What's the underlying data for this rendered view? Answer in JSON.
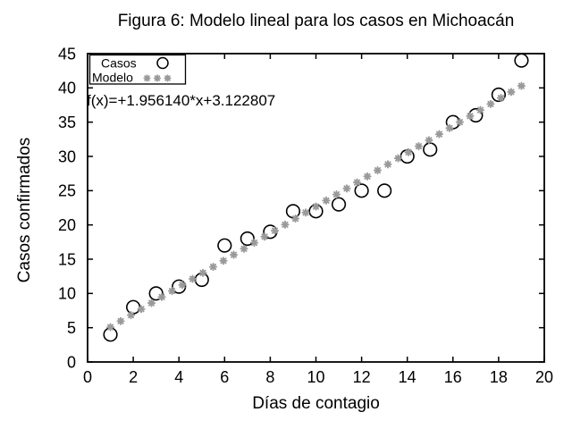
{
  "chart_data": {
    "type": "scatter",
    "title": "Figura 6: Modelo lineal para los casos en Michoacán",
    "xlabel": "Días de contagio",
    "ylabel": "Casos confirmados",
    "xlim": [
      0,
      20
    ],
    "ylim": [
      0,
      45
    ],
    "xticks": [
      0,
      2,
      4,
      6,
      8,
      10,
      12,
      14,
      16,
      18,
      20
    ],
    "yticks": [
      0,
      5,
      10,
      15,
      20,
      25,
      30,
      35,
      40,
      45
    ],
    "grid": false,
    "legend_position": "top-left",
    "annotation": "f(x)=+1.956140*x+3.122807",
    "colors": {
      "casos": "#000000",
      "modelo": "#9a9a9a",
      "background": "#ffffff"
    },
    "series": [
      {
        "name": "Casos",
        "marker": "circle",
        "color": "#000000",
        "x": [
          1,
          2,
          3,
          4,
          5,
          6,
          7,
          8,
          9,
          10,
          11,
          12,
          13,
          14,
          15,
          16,
          17,
          18,
          19
        ],
        "y": [
          4,
          8,
          10,
          11,
          12,
          17,
          18,
          19,
          22,
          22,
          23,
          25,
          25,
          30,
          31,
          35,
          36,
          39,
          44
        ]
      },
      {
        "name": "Modelo",
        "marker": "asterisk",
        "color": "#9a9a9a",
        "model": {
          "slope": 1.95614,
          "intercept": 3.122807,
          "x_start": 1,
          "x_end": 19,
          "x_step": 0.45
        }
      }
    ]
  }
}
